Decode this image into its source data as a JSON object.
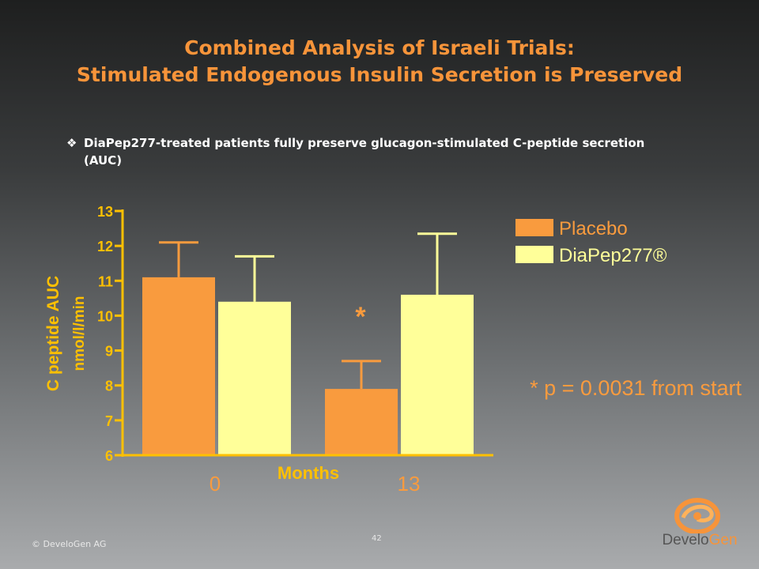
{
  "title": {
    "line1": "Combined Analysis of Israeli Trials:",
    "line2": "Stimulated Endogenous Insulin Secretion is Preserved"
  },
  "bullet": {
    "mark": "❖",
    "text": "DiaPep277-treated patients fully preserve glucagon-stimulated C-peptide secretion (AUC)"
  },
  "footer": {
    "copyright": "© DeveloGen AG",
    "page_number": "42",
    "logo_text_part1": "Develo",
    "logo_text_part2": "Gen"
  },
  "colors": {
    "placebo": "#f99b3e",
    "diapep": "#ffff99",
    "axis": "#ffc000",
    "title": "#f7943a",
    "white": "#ffffff"
  },
  "chart_data": {
    "type": "bar",
    "categories": [
      "0",
      "13"
    ],
    "series": [
      {
        "name": "Placebo",
        "values": [
          11.1,
          7.9
        ],
        "error_upper": [
          12.1,
          8.7
        ]
      },
      {
        "name": "DiaPep277®",
        "values": [
          10.4,
          10.6
        ],
        "error_upper": [
          11.7,
          12.35
        ]
      }
    ],
    "xlabel": "Months",
    "ylabel_line1": "C peptide AUC",
    "ylabel_line2": "nmol/l/min",
    "ylim": [
      6,
      13
    ],
    "yticks": [
      6,
      7,
      8,
      9,
      10,
      11,
      12,
      13
    ],
    "legend_position": "top-right",
    "annotation_star": "*",
    "annotation_note": "* p = 0.0031 from start"
  }
}
